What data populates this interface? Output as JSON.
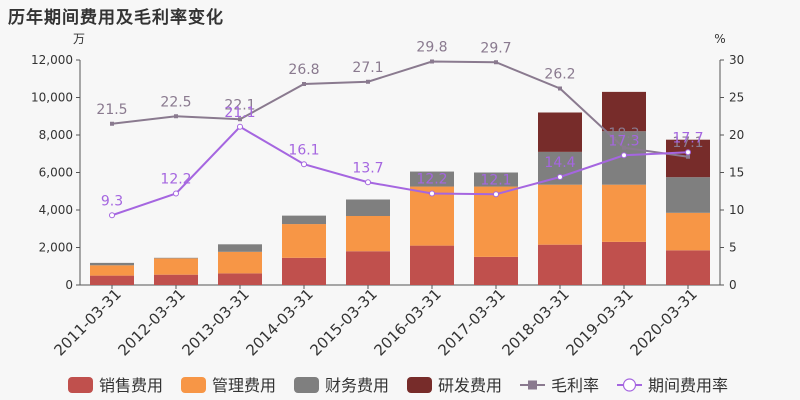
{
  "chart_data": {
    "type": "bar",
    "title": "历年期间费用及毛利率变化",
    "left_unit": "万",
    "right_unit": "%",
    "ylim_left": [
      0,
      12000
    ],
    "ylim_right": [
      0,
      30
    ],
    "left_ticks": [
      "0",
      "2,000",
      "4,000",
      "6,000",
      "8,000",
      "10,000",
      "12,000"
    ],
    "right_ticks": [
      "0",
      "5",
      "10",
      "15",
      "20",
      "25",
      "30"
    ],
    "categories": [
      "2011-03-31",
      "2012-03-31",
      "2013-03-31",
      "2014-03-31",
      "2015-03-31",
      "2016-03-31",
      "2017-03-31",
      "2018-03-31",
      "2019-03-31",
      "2020-03-31"
    ],
    "bar_series": [
      {
        "name": "销售费用",
        "color": "#c0504d",
        "values": [
          500,
          550,
          620,
          1450,
          1800,
          2100,
          1500,
          2150,
          2300,
          1850
        ]
      },
      {
        "name": "管理费用",
        "color": "#f79646",
        "values": [
          550,
          870,
          1150,
          1800,
          1880,
          3150,
          3750,
          3200,
          3050,
          2000
        ]
      },
      {
        "name": "财务费用",
        "color": "#7f7f7f",
        "values": [
          130,
          30,
          400,
          450,
          880,
          800,
          750,
          1750,
          2850,
          1900
        ]
      },
      {
        "name": "研发费用",
        "color": "#772c2a",
        "values": [
          0,
          0,
          0,
          0,
          0,
          0,
          0,
          2100,
          2100,
          2000
        ]
      }
    ],
    "line_series": [
      {
        "name": "毛利率",
        "color": "#8a7a8f",
        "values": [
          21.5,
          22.5,
          22.1,
          26.8,
          27.1,
          29.8,
          29.7,
          26.2,
          18.3,
          17.1
        ],
        "labels": [
          "21.5",
          "22.5",
          "22.1",
          "26.8",
          "27.1",
          "29.8",
          "29.7",
          "26.2",
          "18.3",
          "17.1"
        ]
      },
      {
        "name": "期间费用率",
        "color": "#a566e0",
        "values": [
          9.3,
          12.2,
          21.1,
          16.1,
          13.7,
          12.2,
          12.1,
          14.4,
          17.3,
          17.7
        ],
        "labels": [
          "9.3",
          "12.2",
          "21.1",
          "16.1",
          "13.7",
          "12.2",
          "12.1",
          "14.4",
          "17.3",
          "17.7"
        ]
      }
    ]
  }
}
